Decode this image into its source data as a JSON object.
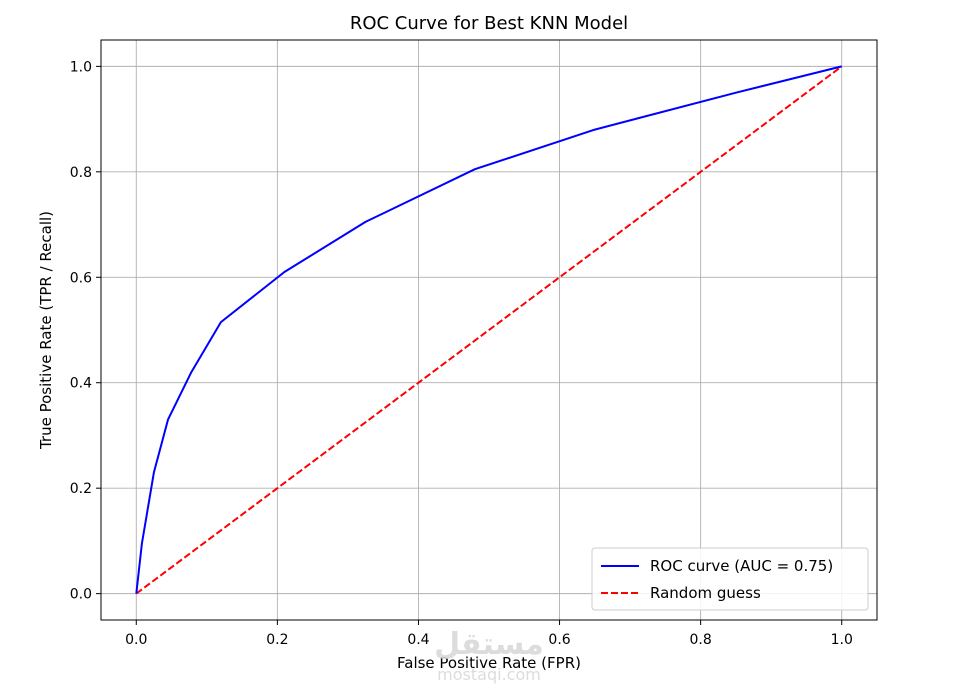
{
  "chart_data": {
    "type": "line",
    "title": "ROC Curve for Best KNN Model",
    "xlabel": "False Positive Rate (FPR)",
    "ylabel": "True Positive Rate (TPR / Recall)",
    "xlim": [
      -0.05,
      1.05
    ],
    "ylim": [
      -0.05,
      1.05
    ],
    "xticks": [
      "0.0",
      "0.2",
      "0.4",
      "0.6",
      "0.8",
      "1.0"
    ],
    "yticks": [
      "0.0",
      "0.2",
      "0.4",
      "0.6",
      "0.8",
      "1.0"
    ],
    "grid": true,
    "legend_position": "lower-right",
    "series": [
      {
        "name": "ROC curve (AUC = 0.75)",
        "color": "#0000ff",
        "style": "solid",
        "x": [
          0.0,
          0.008,
          0.025,
          0.045,
          0.078,
          0.12,
          0.21,
          0.325,
          0.48,
          0.65,
          0.85,
          1.0
        ],
        "y": [
          0.0,
          0.095,
          0.23,
          0.33,
          0.42,
          0.515,
          0.61,
          0.705,
          0.805,
          0.88,
          0.95,
          1.0
        ]
      },
      {
        "name": "Random guess",
        "color": "#ff0000",
        "style": "dashed",
        "x": [
          0.0,
          1.0
        ],
        "y": [
          0.0,
          1.0
        ]
      }
    ]
  },
  "watermark": {
    "arabic": "مستقل",
    "latin": "mostaqi.com"
  }
}
